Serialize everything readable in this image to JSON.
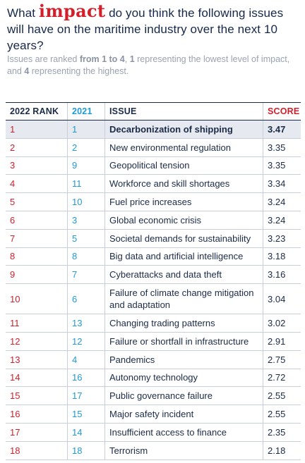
{
  "title": {
    "part1": "What ",
    "impact": "impact",
    "part2": " do you think the following issues will have on the maritime industry over the next 10 years?"
  },
  "subtitle": {
    "t1": "Issues are ranked ",
    "b1": "from 1 to 4",
    "t2": ", ",
    "b2": "1",
    "t3": " representing the lowest level of impact, and ",
    "b3": "4",
    "t4": " representing the highest."
  },
  "table": {
    "headers": {
      "rank": "2022 RANK",
      "prev": "2021",
      "issue": "ISSUE",
      "score": "SCORE"
    },
    "rows": [
      {
        "rank": "1",
        "prev": "1",
        "issue": "Decarbonization of shipping",
        "score": "3.47"
      },
      {
        "rank": "2",
        "prev": "2",
        "issue": "New environmental regulation",
        "score": "3.35"
      },
      {
        "rank": "3",
        "prev": "9",
        "issue": "Geopolitical tension",
        "score": "3.35"
      },
      {
        "rank": "4",
        "prev": "11",
        "issue": "Workforce and skill shortages",
        "score": "3.34"
      },
      {
        "rank": "5",
        "prev": "10",
        "issue": "Fuel price increases",
        "score": "3.24"
      },
      {
        "rank": "6",
        "prev": "3",
        "issue": "Global economic crisis",
        "score": "3.24"
      },
      {
        "rank": "7",
        "prev": "5",
        "issue": "Societal demands for sustainability",
        "score": "3.23"
      },
      {
        "rank": "8",
        "prev": "8",
        "issue": "Big data and artificial intelligence",
        "score": "3.18"
      },
      {
        "rank": "9",
        "prev": "7",
        "issue": "Cyberattacks and data theft",
        "score": "3.16"
      },
      {
        "rank": "10",
        "prev": "6",
        "issue": "Failure of climate change mitigation and adaptation",
        "score": "3.04"
      },
      {
        "rank": "11",
        "prev": "13",
        "issue": "Changing trading patterns",
        "score": "3.02"
      },
      {
        "rank": "12",
        "prev": "12",
        "issue": "Failure or shortfall in infrastructure",
        "score": "2.91"
      },
      {
        "rank": "13",
        "prev": "4",
        "issue": "Pandemics",
        "score": "2.75"
      },
      {
        "rank": "14",
        "prev": "16",
        "issue": "Autonomy technology",
        "score": "2.72"
      },
      {
        "rank": "15",
        "prev": "17",
        "issue": "Public governance failure",
        "score": "2.55"
      },
      {
        "rank": "16",
        "prev": "15",
        "issue": "Major safety incident",
        "score": "2.55"
      },
      {
        "rank": "17",
        "prev": "14",
        "issue": "Insufficient access to finance",
        "score": "2.35"
      },
      {
        "rank": "18",
        "prev": "18",
        "issue": "Terrorism",
        "score": "2.18"
      }
    ]
  },
  "colors": {
    "rank": "#d41f2b",
    "prev": "#1e9ad6",
    "text": "#1b2b47",
    "highlight_row": "#e6eaf0"
  }
}
